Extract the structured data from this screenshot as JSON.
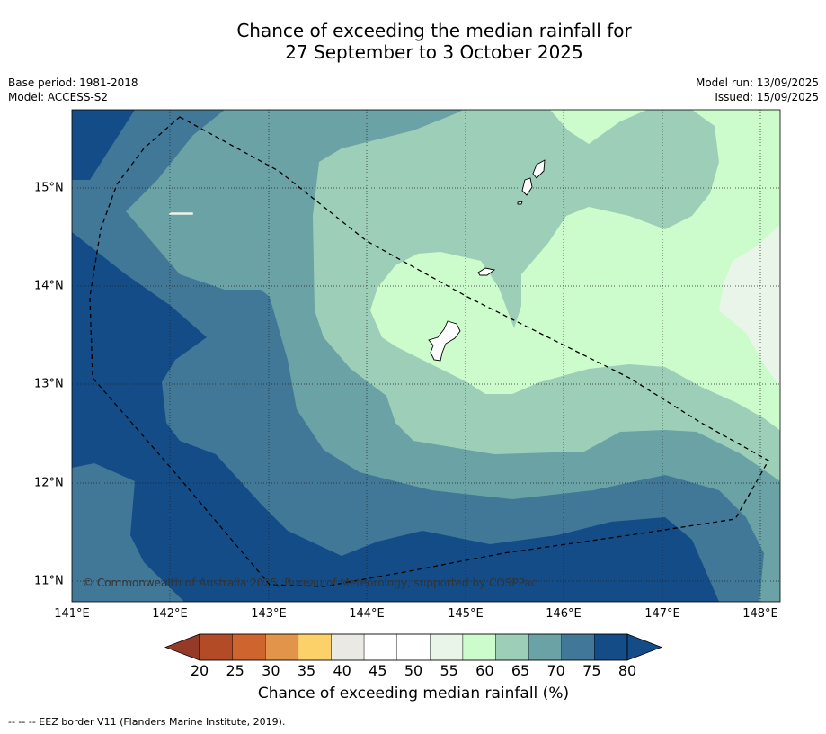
{
  "title_line1": "Chance of exceeding the median rainfall for",
  "title_line2": "27 September to 3 October 2025",
  "base_period": "Base period: 1981-2018",
  "model": "Model: ACCESS-S2",
  "model_run": "Model run: 13/09/2025",
  "issued": "Issued: 15/09/2025",
  "copyright": "© Commonwealth of Australia 2025, Bureau of Meteorology, supported by COSPPac",
  "legend_note": "--  --  -- EEZ border V11 (Flanders Marine Institute, 2019).",
  "colorbar_title": "Chance of exceeding median rainfall (%)",
  "x_ticks": [
    "141°E",
    "142°E",
    "143°E",
    "144°E",
    "145°E",
    "146°E",
    "147°E",
    "148°E"
  ],
  "y_ticks": [
    "15°N",
    "14°N",
    "13°N",
    "12°N",
    "11°N"
  ],
  "colorbar": {
    "labels": [
      "20",
      "25",
      "30",
      "35",
      "40",
      "45",
      "50",
      "55",
      "60",
      "65",
      "70",
      "75",
      "80"
    ],
    "colors": [
      "#b34b27",
      "#d0642f",
      "#e2954a",
      "#fdd16a",
      "#ebe9e4",
      "#ffffff",
      "#ffffff",
      "#e9f5e9",
      "#ccfccc",
      "#9dcfb8",
      "#6aa2a5",
      "#417897",
      "#134c87"
    ],
    "under_color": "#953a26",
    "over_color": "#134c87"
  }
}
